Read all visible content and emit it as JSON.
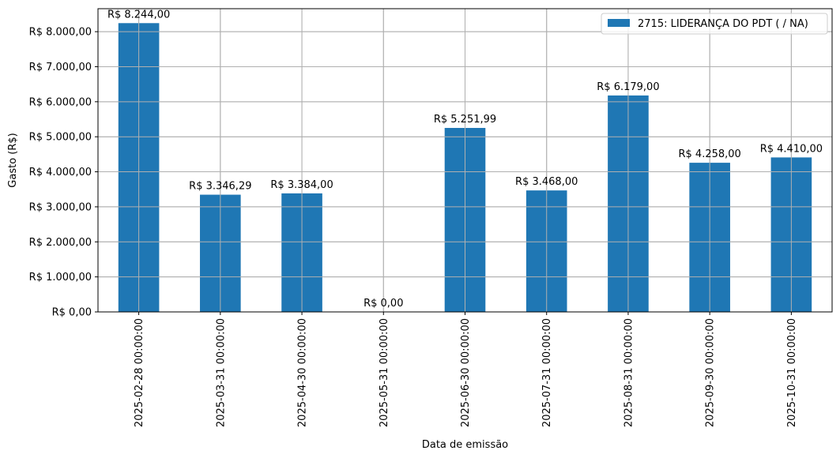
{
  "chart_data": {
    "type": "bar",
    "title": "",
    "xlabel": "Data de emissão",
    "ylabel": "Gasto (R$)",
    "categories": [
      "2025-02-28 00:00:00",
      "2025-03-31 00:00:00",
      "2025-04-30 00:00:00",
      "2025-05-31 00:00:00",
      "2025-06-30 00:00:00",
      "2025-07-31 00:00:00",
      "2025-08-31 00:00:00",
      "2025-09-30 00:00:00",
      "2025-10-31 00:00:00"
    ],
    "series": [
      {
        "name": "2715: LIDERANÇA DO PDT ( / NA)",
        "color": "#1f77b4",
        "values": [
          8244.0,
          3346.29,
          3384.0,
          0.0,
          5251.99,
          3468.0,
          6179.0,
          4258.0,
          4410.0
        ],
        "value_labels": [
          "R$ 8.244,00",
          "R$ 3.346,29",
          "R$ 3.384,00",
          "R$ 0,00",
          "R$ 5.251,99",
          "R$ 3.468,00",
          "R$ 6.179,00",
          "R$ 4.258,00",
          "R$ 4.410,00"
        ]
      }
    ],
    "ylim": [
      0,
      8656.2
    ],
    "yticks": [
      0,
      1000,
      2000,
      3000,
      4000,
      5000,
      6000,
      7000,
      8000
    ],
    "ytick_labels": [
      "R$ 0,00",
      "R$ 1.000,00",
      "R$ 2.000,00",
      "R$ 3.000,00",
      "R$ 4.000,00",
      "R$ 5.000,00",
      "R$ 6.000,00",
      "R$ 7.000,00",
      "R$ 8.000,00"
    ],
    "grid": true,
    "legend_position": "top-right",
    "colors": {
      "bar": "#1f77b4",
      "grid": "#b0b0b0",
      "axes": "#000000",
      "legend_border": "#cccccc"
    }
  }
}
